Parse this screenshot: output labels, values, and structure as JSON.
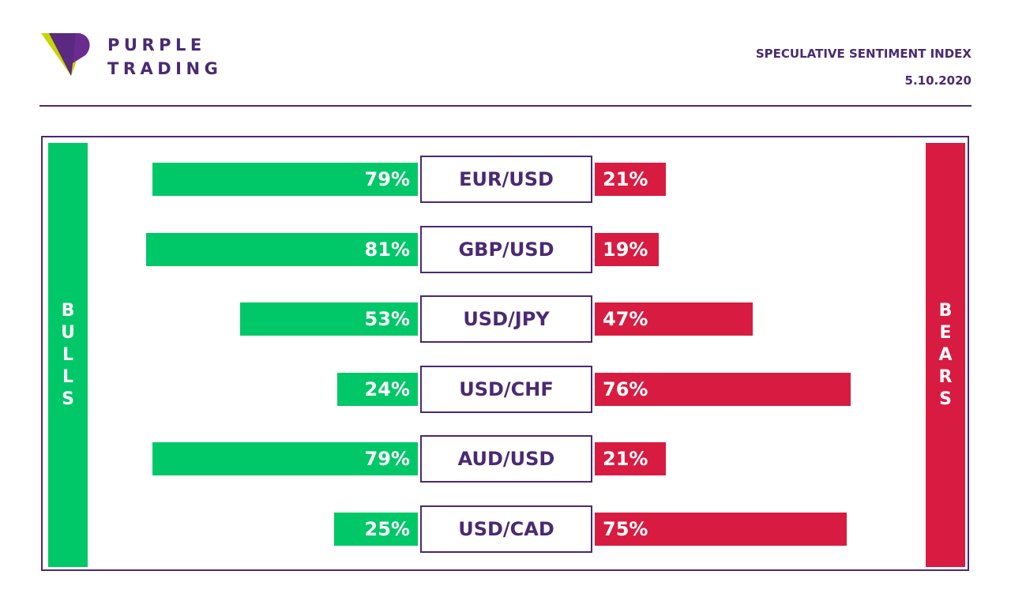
{
  "brand": {
    "line1": "PURPLE",
    "line2": "TRADING",
    "primary_color": "#4a2a73",
    "accent_color": "#c8d400"
  },
  "header": {
    "title": "SPECULATIVE SENTIMENT INDEX",
    "date": "5.10.2020"
  },
  "side_labels": {
    "bulls": "BULLS",
    "bears": "BEARS",
    "bulls_color": "#00c767",
    "bears_color": "#d81b40"
  },
  "chart_data": {
    "type": "bar",
    "categories": [
      "EUR/USD",
      "GBP/USD",
      "USD/JPY",
      "USD/CHF",
      "AUD/USD",
      "USD/CAD"
    ],
    "series": [
      {
        "name": "BULLS",
        "values": [
          79,
          81,
          53,
          24,
          79,
          25
        ],
        "labels": [
          "79%",
          "81%",
          "53%",
          "24%",
          "79%",
          "25%"
        ]
      },
      {
        "name": "BEARS",
        "values": [
          21,
          19,
          47,
          76,
          21,
          75
        ],
        "labels": [
          "21%",
          "19%",
          "47%",
          "76%",
          "21%",
          "75%"
        ]
      }
    ],
    "orientation": "diverging-horizontal",
    "unit": "%"
  }
}
